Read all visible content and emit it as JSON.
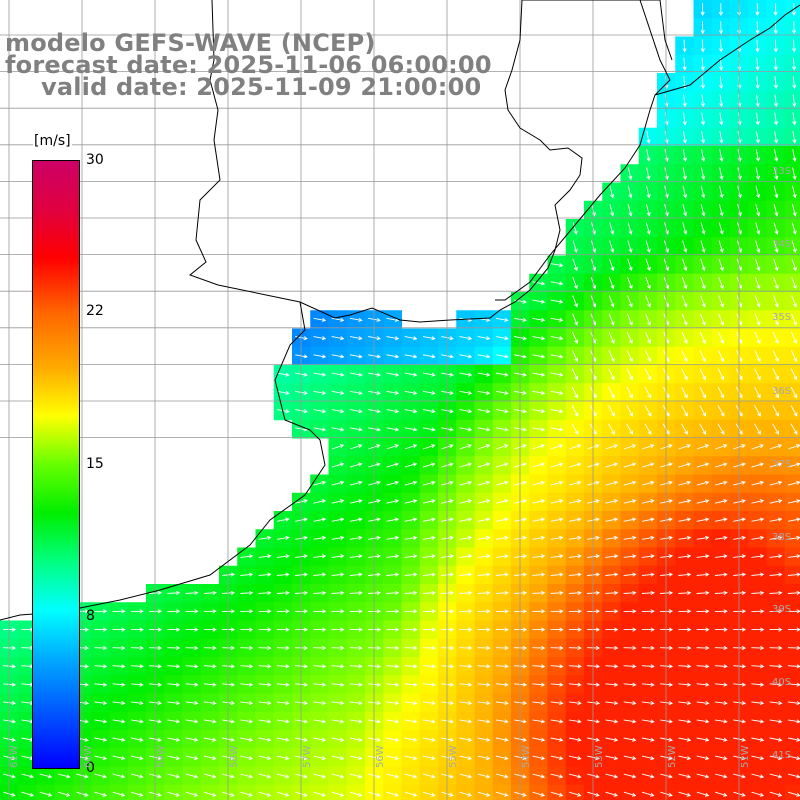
{
  "titles": {
    "model": "modelo GEFS-WAVE (NCEP)",
    "forecast": "forecast date: 2025-11-06 06:00:00",
    "valid": "valid date: 2025-11-09 21:00:00"
  },
  "colorbar": {
    "unit": "[m/s]",
    "ticks": [
      "30",
      "22",
      "15",
      "8",
      "0"
    ],
    "colors": [
      "#0000ff",
      "#00aaff",
      "#00ffff",
      "#00ee00",
      "#ffff00",
      "#ff6600",
      "#ff0000",
      "#cc0066"
    ]
  },
  "lat_labels": [
    "33S",
    "34S",
    "35S",
    "36S",
    "37S",
    "38S",
    "39S",
    "40S",
    "41S"
  ],
  "lon_labels": [
    "61W",
    "60W",
    "59W",
    "58W",
    "57W",
    "56W",
    "55W",
    "54W",
    "53W",
    "52W",
    "51W"
  ],
  "map": {
    "variable": "wind speed",
    "grid_lines": "on",
    "arrows": "wind direction vectors"
  }
}
